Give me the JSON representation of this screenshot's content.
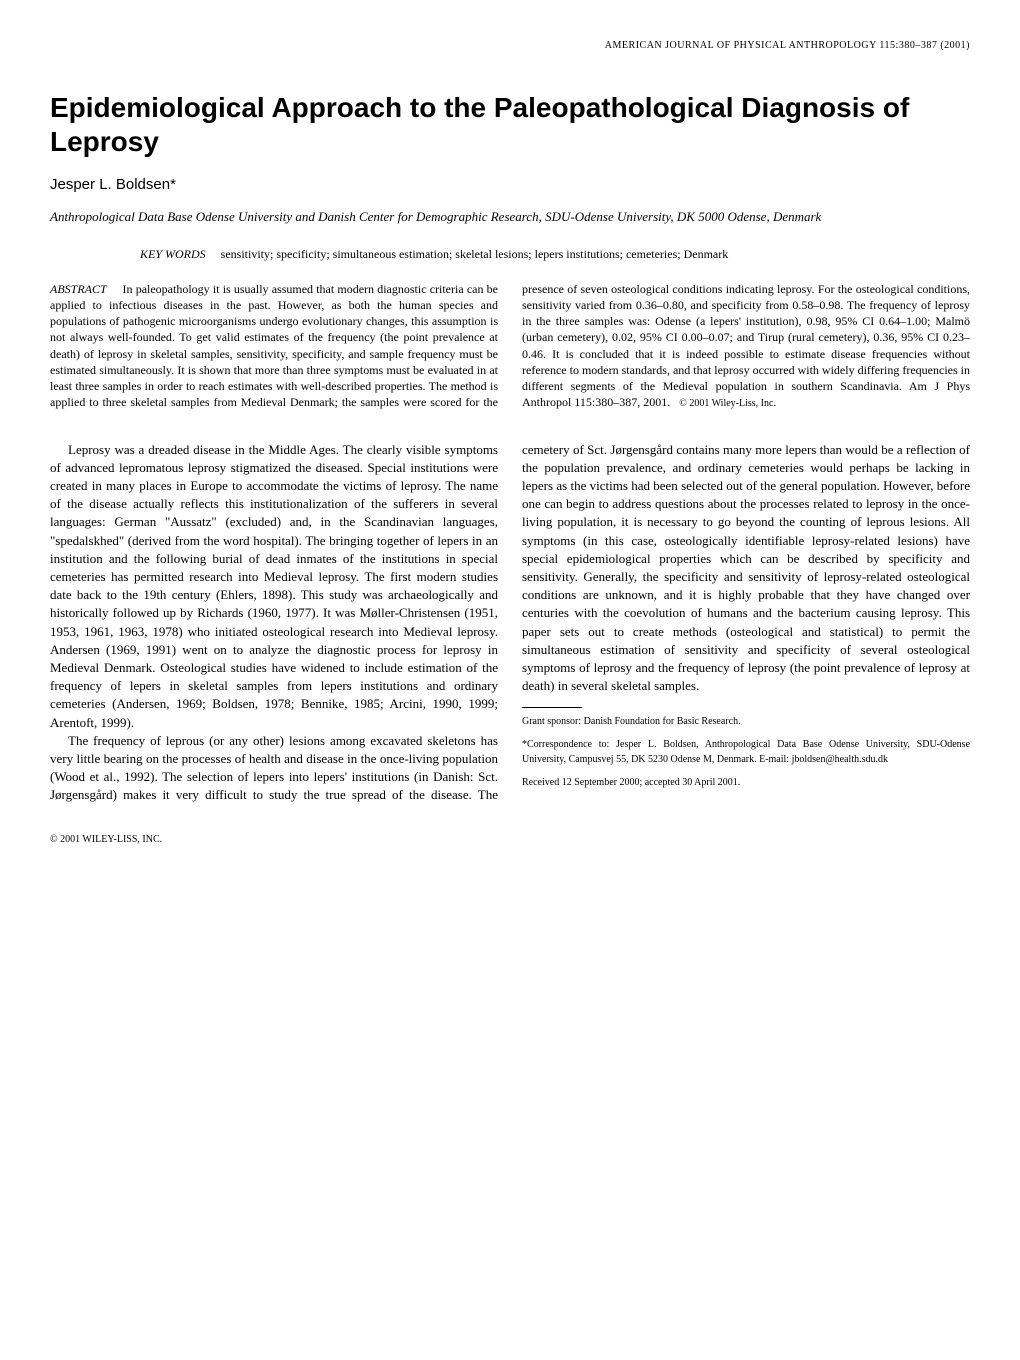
{
  "journal_header": "AMERICAN JOURNAL OF PHYSICAL ANTHROPOLOGY 115:380–387 (2001)",
  "title": "Epidemiological Approach to the Paleopathological Diagnosis of Leprosy",
  "author": "Jesper L. Boldsen*",
  "affiliation": "Anthropological Data Base Odense University and Danish Center for Demographic Research, SDU-Odense University, DK 5000 Odense, Denmark",
  "keywords_label": "KEY WORDS",
  "keywords": "sensitivity; specificity; simultaneous estimation; skeletal lesions; lepers institutions; cemeteries; Denmark",
  "abstract_label": "ABSTRACT",
  "abstract_text": "In paleopathology it is usually assumed that modern diagnostic criteria can be applied to infectious diseases in the past. However, as both the human species and populations of pathogenic microorganisms undergo evolutionary changes, this assumption is not always well-founded. To get valid estimates of the frequency (the point prevalence at death) of leprosy in skeletal samples, sensitivity, specificity, and sample frequency must be estimated simultaneously. It is shown that more than three symptoms must be evaluated in at least three samples in order to reach estimates with well-described properties. The method is applied to three skeletal samples from Medieval Denmark; the samples were scored for the presence of seven osteological conditions indicating leprosy. For the osteological conditions, sensitivity varied from 0.36–0.80, and specificity from 0.58–0.98. The frequency of leprosy in the three samples was: Odense (a lepers' institution), 0.98, 95% CI 0.64–1.00; Malmö (urban cemetery), 0.02, 95% CI 0.00–0.07; and Tirup (rural cemetery), 0.36, 95% CI 0.23–0.46. It is concluded that it is indeed possible to estimate disease frequencies without reference to modern standards, and that leprosy occurred with widely differing frequencies in different segments of the Medieval population in southern Scandinavia. Am J Phys Anthropol 115:380–387, 2001.",
  "copyright_inline": "© 2001 Wiley-Liss, Inc.",
  "body_p1": "Leprosy was a dreaded disease in the Middle Ages. The clearly visible symptoms of advanced lepromatous leprosy stigmatized the diseased. Special institutions were created in many places in Europe to accommodate the victims of leprosy. The name of the disease actually reflects this institutionalization of the sufferers in several languages: German \"Aussatz\" (excluded) and, in the Scandinavian languages, \"spedalskhed\" (derived from the word hospital). The bringing together of lepers in an institution and the following burial of dead inmates of the institutions in special cemeteries has permitted research into Medieval leprosy. The first modern studies date back to the 19th century (Ehlers, 1898). This study was archaeologically and historically followed up by Richards (1960, 1977). It was Møller-Christensen (1951, 1953, 1961, 1963, 1978) who initiated osteological research into Medieval leprosy. Andersen (1969, 1991) went on to analyze the diagnostic process for leprosy in Medieval Denmark. Osteological studies have widened to include estimation of the frequency of lepers in skeletal samples from lepers institutions and ordinary cemeteries (Andersen, 1969; Boldsen, 1978; Bennike, 1985; Arcini, 1990, 1999; Arentoft, 1999).",
  "body_p2": "The frequency of leprous (or any other) lesions among excavated skeletons has very little bearing on the processes of health and disease in the once-living population (Wood et al., 1992). The selection of lepers into lepers' institutions (in Danish: Sct. Jørgensgård) makes it very difficult to study the true spread of the disease. The cemetery of Sct. Jørgensgård contains many more lepers than would be a reflection of the population prevalence, and ordinary cemeteries would perhaps be lacking in lepers as the victims had been selected out of the general population. However, before one can begin to address questions about the processes related to leprosy in the once-living population, it is necessary to go beyond the counting of leprous lesions. All symptoms (in this case, osteologically identifiable leprosy-related lesions) have special epidemiological properties which can be described by specificity and sensitivity. Generally, the specificity and sensitivity of leprosy-related osteological conditions are unknown, and it is highly probable that they have changed over centuries with the coevolution of humans and the bacterium causing leprosy. This paper sets out to create methods (osteological and statistical) to permit the simultaneous estimation of sensitivity and specificity of several osteological symptoms of leprosy and the frequency of leprosy (the point prevalence of leprosy at death) in several skeletal samples.",
  "footnote_grant": "Grant sponsor: Danish Foundation for Basic Research.",
  "footnote_correspondence": "*Correspondence to: Jesper L. Boldsen, Anthropological Data Base Odense University, SDU-Odense University, Campusvej 55, DK 5230 Odense M, Denmark. E-mail: jboldsen@health.sdu.dk",
  "footnote_received": "Received 12 September 2000; accepted 30 April 2001.",
  "footer_copyright": "© 2001 WILEY-LISS, INC."
}
